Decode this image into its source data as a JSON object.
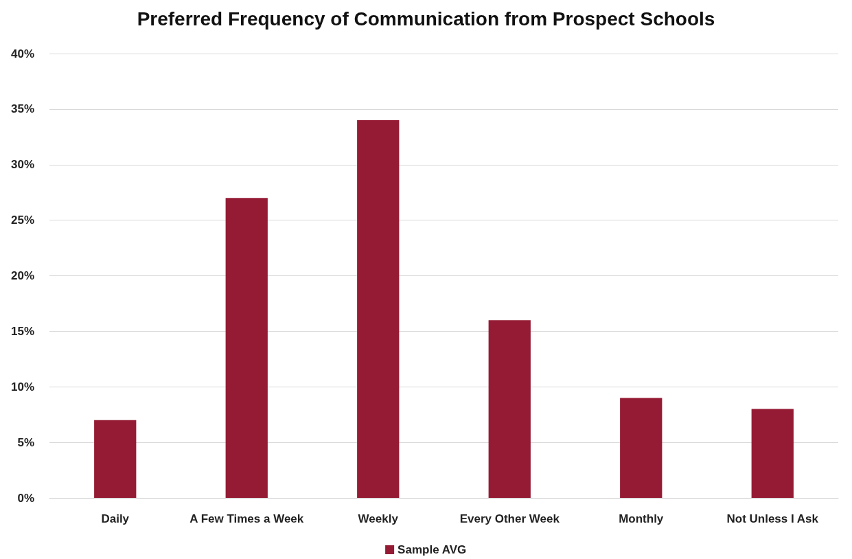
{
  "chart_data": {
    "type": "bar",
    "title": "Preferred Frequency of Communication from Prospect Schools",
    "categories": [
      "Daily",
      "A Few Times a Week",
      "Weekly",
      "Every Other Week",
      "Monthly",
      "Not Unless I Ask"
    ],
    "series": [
      {
        "name": "Sample AVG",
        "color": "#951b34",
        "values": [
          7,
          27,
          34,
          16,
          9,
          8
        ]
      }
    ],
    "ylim": [
      0,
      40
    ],
    "yticks": [
      {
        "value": 0,
        "label": "0%"
      },
      {
        "value": 5,
        "label": "5%"
      },
      {
        "value": 10,
        "label": "10%"
      },
      {
        "value": 15,
        "label": "15%"
      },
      {
        "value": 20,
        "label": "20%"
      },
      {
        "value": 25,
        "label": "25%"
      },
      {
        "value": 30,
        "label": "30%"
      },
      {
        "value": 35,
        "label": "35%"
      },
      {
        "value": 40,
        "label": "40%"
      }
    ],
    "grid": "y",
    "legend": "bottom"
  }
}
